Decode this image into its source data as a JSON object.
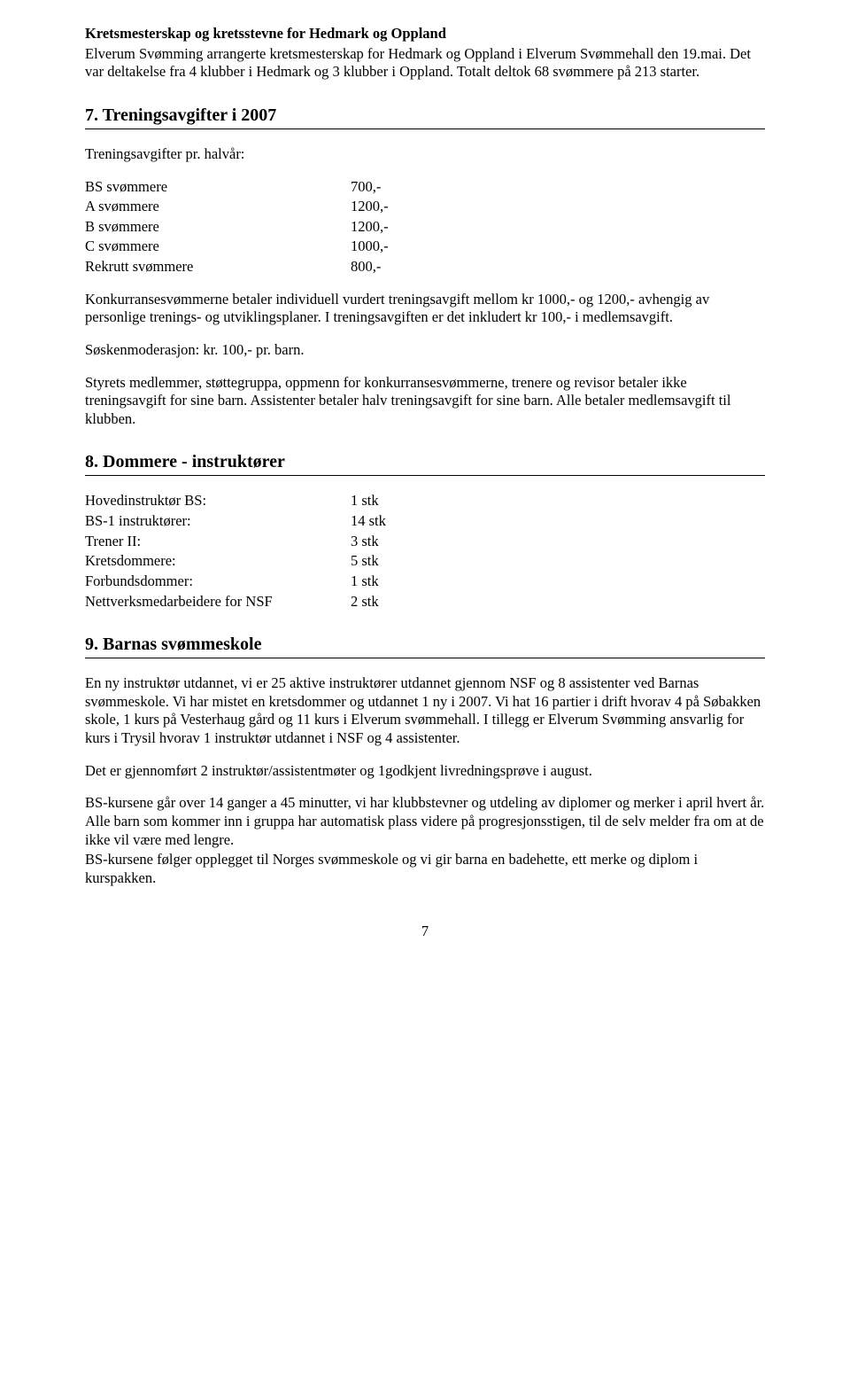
{
  "intro": {
    "title": "Kretsmesterskap og kretsstevne for Hedmark og Oppland",
    "line1": "Elverum Svømming arrangerte kretsmesterskap for Hedmark og Oppland i Elverum Svømmehall den 19.mai. Det var deltakelse fra 4 klubber i Hedmark  og 3 klubber i Oppland. Totalt deltok 68 svømmere på 213 starter."
  },
  "s7": {
    "heading": "7.  Treningsavgifter i 2007",
    "subhead": "Treningsavgifter pr. halvår:",
    "rows": [
      {
        "label": "BS svømmere",
        "value": "700,-"
      },
      {
        "label": "A svømmere",
        "value": "1200,-"
      },
      {
        "label": "B svømmere",
        "value": "1200,-"
      },
      {
        "label": "C svømmere",
        "value": "1000,-"
      },
      {
        "label": "Rekrutt svømmere",
        "value": "800,-"
      }
    ],
    "p1": "Konkurransesvømmerne betaler individuell vurdert treningsavgift mellom kr 1000,- og 1200,- avhengig av personlige trenings- og utviklingsplaner. I treningsavgiften er det inkludert kr 100,- i medlemsavgift.",
    "p2": "Søskenmoderasjon: kr. 100,- pr. barn.",
    "p3": "Styrets medlemmer, støttegruppa, oppmenn for konkurransesvømmerne, trenere og revisor betaler ikke treningsavgift for sine barn. Assistenter betaler halv treningsavgift for sine barn. Alle betaler medlemsavgift til klubben."
  },
  "s8": {
    "heading": "8.  Dommere - instruktører",
    "rows": [
      {
        "label": "Hovedinstruktør BS:",
        "value": "1 stk"
      },
      {
        "label": "BS-1 instruktører:",
        "value": "14 stk"
      },
      {
        "label": "Trener II:",
        "value": "3 stk"
      },
      {
        "label": "Kretsdommere:",
        "value": "5 stk"
      },
      {
        "label": "Forbundsdommer:",
        "value": "1 stk"
      },
      {
        "label": "Nettverksmedarbeidere for NSF",
        "value": "2 stk"
      }
    ]
  },
  "s9": {
    "heading": "9.  Barnas svømmeskole",
    "p1": "En ny instruktør utdannet, vi er 25 aktive instruktører utdannet gjennom NSF og 8 assistenter ved Barnas svømmeskole. Vi har mistet en kretsdommer og utdannet 1 ny i 2007. Vi hat 16 partier i drift hvorav 4 på Søbakken skole, 1 kurs på Vesterhaug gård og 11 kurs i Elverum svømmehall. I tillegg er Elverum Svømming ansvarlig for kurs i Trysil hvorav 1 instruktør utdannet i NSF og 4 assistenter.",
    "p2": "Det er gjennomført 2 instruktør/assistentmøter og 1godkjent livredningsprøve i august.",
    "p3": "BS-kursene går over 14 ganger a 45 minutter, vi har klubbstevner og utdeling av diplomer og merker i april hvert år. Alle barn som kommer inn i gruppa har automatisk plass videre på progresjonsstigen, til de selv melder fra om at de ikke vil være med lengre.",
    "p4": "BS-kursene følger opplegget til Norges svømmeskole og vi gir barna en badehette, ett merke og diplom i kurspakken."
  },
  "pageNumber": "7"
}
